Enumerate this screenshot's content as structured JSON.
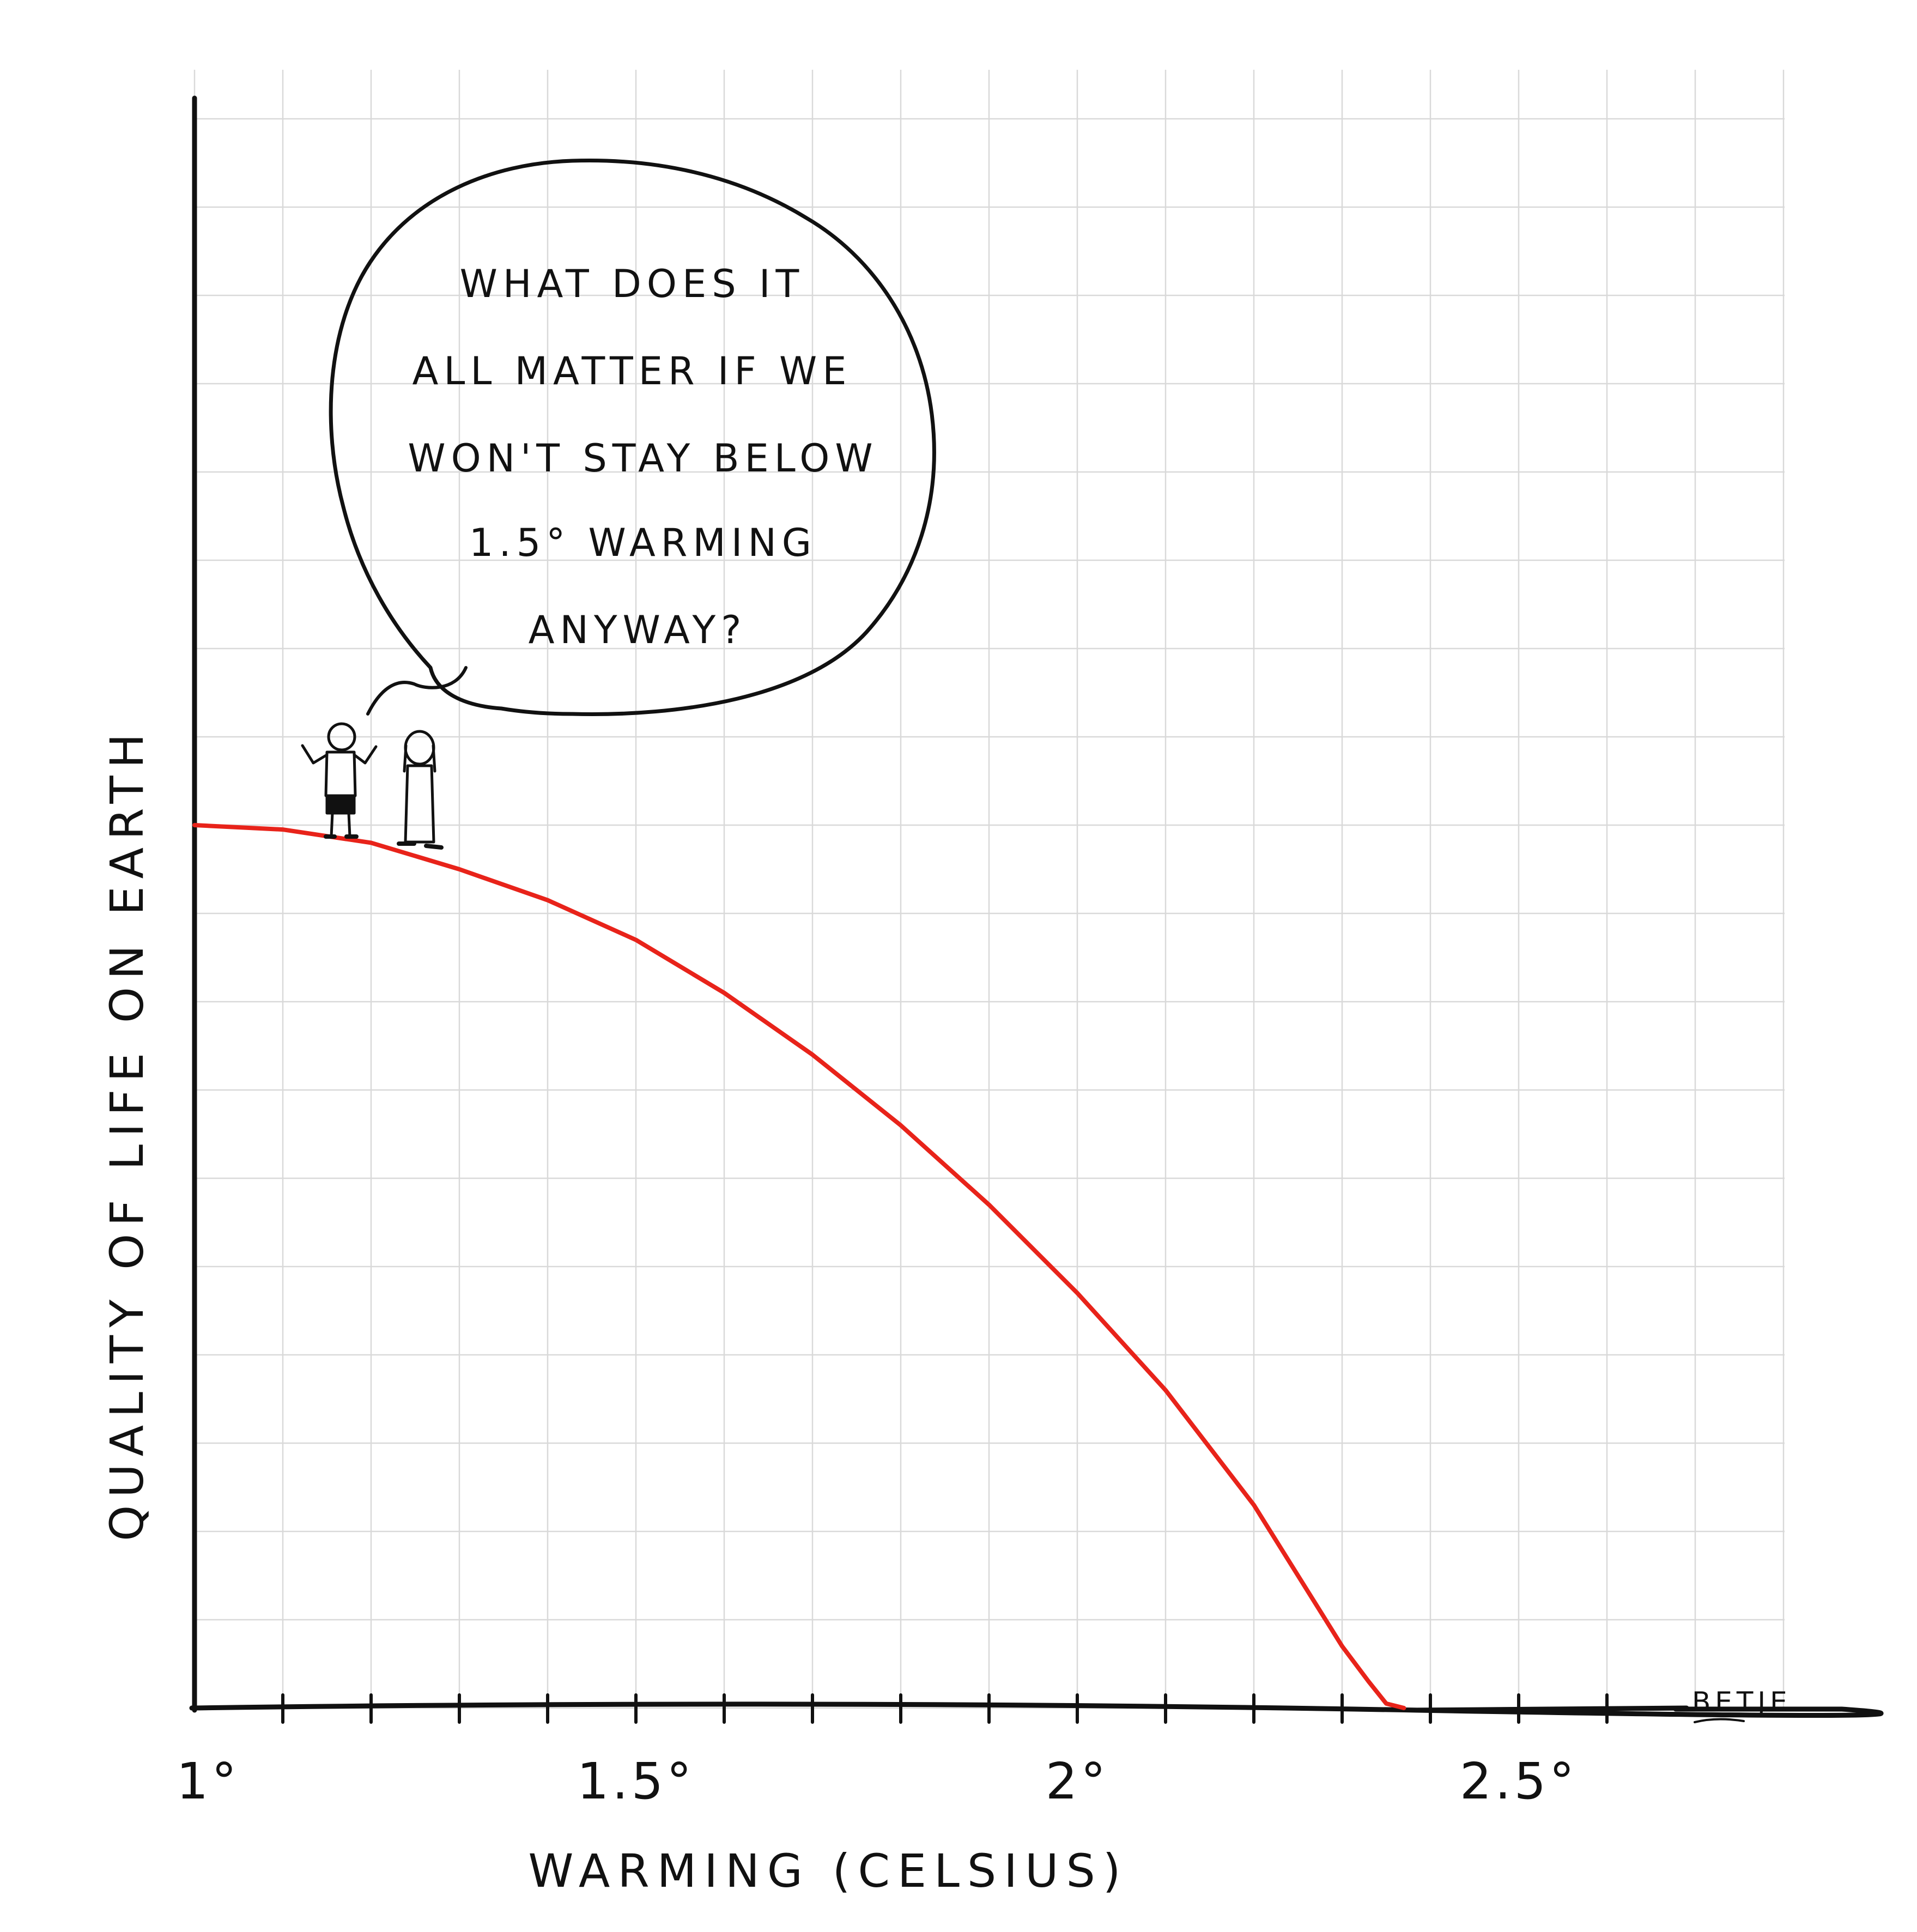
{
  "chart_data": {
    "type": "line",
    "xlabel": "WARMING (CELSIUS)",
    "ylabel": "QUALITY OF LIFE ON EARTH",
    "xlim": [
      1,
      2.9
    ],
    "ylim": [
      0,
      1.3
    ],
    "ticks_x": [
      "1°",
      "1.5°",
      "2°",
      "2.5°"
    ],
    "grid": true,
    "series": [
      {
        "color": "#e8231a",
        "x": [
          1.0,
          1.1,
          1.2,
          1.3,
          1.4,
          1.5,
          1.6,
          1.7,
          1.8,
          1.9,
          2.0,
          2.1,
          2.2,
          2.25,
          2.3,
          2.33,
          2.35,
          2.37
        ],
        "y": [
          1.0,
          0.995,
          0.98,
          0.95,
          0.915,
          0.87,
          0.81,
          0.74,
          0.66,
          0.57,
          0.47,
          0.36,
          0.23,
          0.15,
          0.07,
          0.03,
          0.005,
          0.0
        ]
      }
    ],
    "annotations": {
      "speech_bubble": [
        "WHAT DOES IT",
        "ALL MATTER IF WE",
        "WON'T STAY BELOW",
        "1.5° WARMING",
        "ANYWAY?"
      ]
    }
  },
  "signature": "BETJE",
  "colors": {
    "curve": "#e8231a",
    "ink": "#111111",
    "grid": "#d9d9d9"
  }
}
